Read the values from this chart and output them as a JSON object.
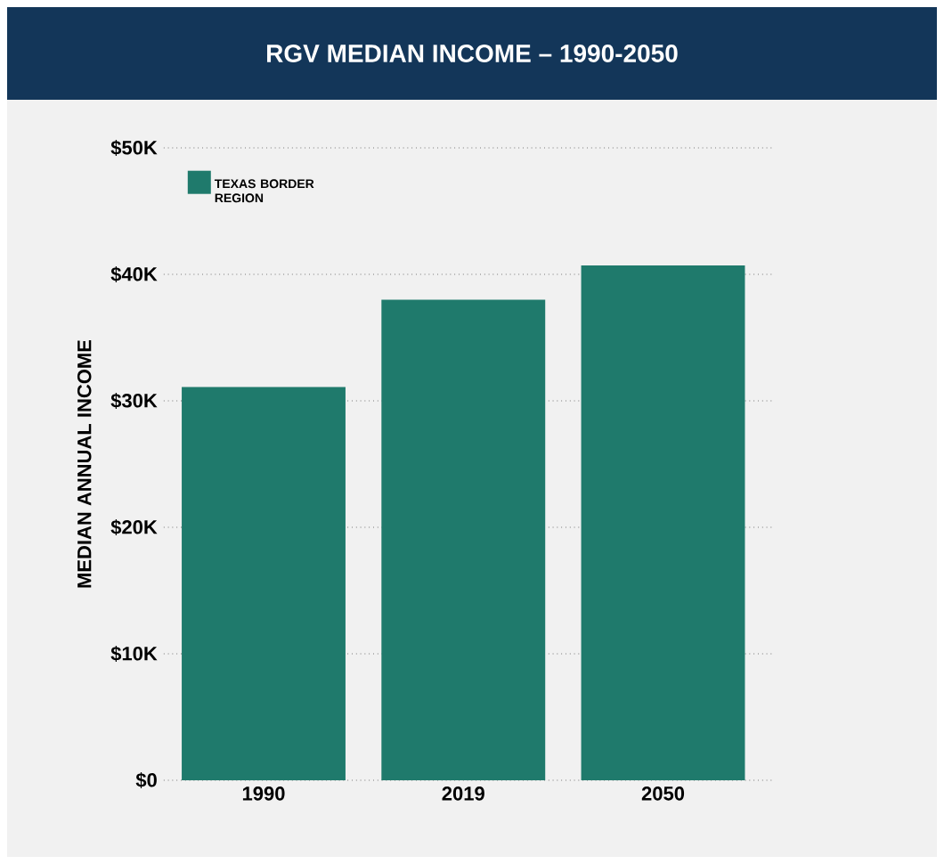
{
  "chart_data": {
    "type": "bar",
    "title": "RGV MEDIAN INCOME – 1990-2050",
    "ylabel": "MEDIAN ANNUAL INCOME",
    "categories": [
      "1990",
      "2019",
      "2050"
    ],
    "series": [
      {
        "name": "TEXAS BORDER REGION",
        "color": "#1f7a6c",
        "values": [
          31100,
          38000,
          40700
        ]
      }
    ],
    "ylim": [
      0,
      50000
    ],
    "yticks": [
      {
        "value": 0,
        "label": "$0"
      },
      {
        "value": 10000,
        "label": "$10K"
      },
      {
        "value": 20000,
        "label": "$20K"
      },
      {
        "value": 30000,
        "label": "$30K"
      },
      {
        "value": 40000,
        "label": "$40K"
      },
      {
        "value": 50000,
        "label": "$50K"
      }
    ],
    "grid": "y",
    "legend": "top left"
  }
}
